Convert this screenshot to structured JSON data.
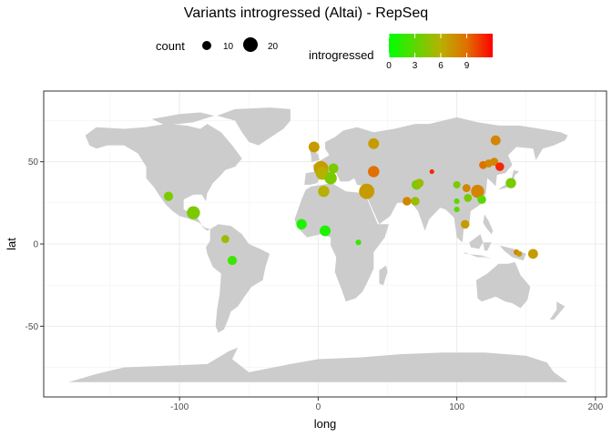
{
  "chart_data": {
    "type": "scatter",
    "title": "Variants introgressed (Altai) - RepSeq",
    "xlabel": "long",
    "ylabel": "lat",
    "xlim": [
      -198,
      208
    ],
    "ylim": [
      -93,
      93
    ],
    "x_ticks": [
      -100,
      0,
      100,
      200
    ],
    "x_tick_labels": [
      "-100",
      "0",
      "100",
      "200"
    ],
    "y_ticks": [
      -50,
      0,
      50
    ],
    "y_tick_labels": [
      "-50",
      "0",
      "50"
    ],
    "grid": true,
    "background_map": "world",
    "legend": {
      "placement": "top",
      "size": {
        "title": "count",
        "values": [
          10,
          20
        ],
        "labels": [
          "10",
          "20"
        ]
      },
      "color": {
        "title": "introgressed",
        "min": 0,
        "max": 12,
        "ticks": [
          0,
          3,
          6,
          9
        ],
        "tick_labels": [
          "0",
          "3",
          "6",
          "9"
        ],
        "low_color": "#00ff00",
        "high_color": "#ff0000"
      }
    },
    "points": [
      {
        "long": -108,
        "lat": 29,
        "count": 8,
        "introgressed": 4
      },
      {
        "long": -90,
        "lat": 19,
        "count": 16,
        "introgressed": 4
      },
      {
        "long": -67,
        "lat": 3,
        "count": 6,
        "introgressed": 5
      },
      {
        "long": -62,
        "lat": -10,
        "count": 8,
        "introgressed": 2
      },
      {
        "long": -12,
        "lat": 12,
        "count": 10,
        "introgressed": 1
      },
      {
        "long": 5,
        "lat": 8,
        "count": 11,
        "introgressed": 1
      },
      {
        "long": 29,
        "lat": 1,
        "count": 3,
        "introgressed": 2
      },
      {
        "long": -3,
        "lat": 59,
        "count": 11,
        "introgressed": 7
      },
      {
        "long": 2,
        "lat": 46,
        "count": 20,
        "introgressed": 7
      },
      {
        "long": 3,
        "lat": 43,
        "count": 16,
        "introgressed": 6
      },
      {
        "long": 11,
        "lat": 46,
        "count": 9,
        "introgressed": 4
      },
      {
        "long": 9,
        "lat": 40,
        "count": 14,
        "introgressed": 4
      },
      {
        "long": 4,
        "lat": 32,
        "count": 12,
        "introgressed": 6
      },
      {
        "long": 35,
        "lat": 32,
        "count": 22,
        "introgressed": 7
      },
      {
        "long": 40,
        "lat": 61,
        "count": 11,
        "introgressed": 7
      },
      {
        "long": 40,
        "lat": 44,
        "count": 12,
        "introgressed": 9
      },
      {
        "long": 64,
        "lat": 26,
        "count": 7,
        "introgressed": 8
      },
      {
        "long": 70,
        "lat": 26,
        "count": 7,
        "introgressed": 5
      },
      {
        "long": 71,
        "lat": 36,
        "count": 9,
        "introgressed": 4
      },
      {
        "long": 73,
        "lat": 37,
        "count": 7,
        "introgressed": 5
      },
      {
        "long": 82,
        "lat": 44,
        "count": 2,
        "introgressed": 11
      },
      {
        "long": 100,
        "lat": 36,
        "count": 5,
        "introgressed": 4
      },
      {
        "long": 100,
        "lat": 26,
        "count": 3,
        "introgressed": 3
      },
      {
        "long": 100,
        "lat": 21,
        "count": 3,
        "introgressed": 3
      },
      {
        "long": 107,
        "lat": 34,
        "count": 6,
        "introgressed": 8
      },
      {
        "long": 106,
        "lat": 12,
        "count": 7,
        "introgressed": 7
      },
      {
        "long": 108,
        "lat": 28,
        "count": 6,
        "introgressed": 4
      },
      {
        "long": 115,
        "lat": 32,
        "count": 16,
        "introgressed": 8
      },
      {
        "long": 118,
        "lat": 27,
        "count": 7,
        "introgressed": 3
      },
      {
        "long": 119,
        "lat": 48,
        "count": 6,
        "introgressed": 9
      },
      {
        "long": 123,
        "lat": 49,
        "count": 6,
        "introgressed": 8
      },
      {
        "long": 127,
        "lat": 50,
        "count": 6,
        "introgressed": 8
      },
      {
        "long": 131,
        "lat": 47,
        "count": 7,
        "introgressed": 11
      },
      {
        "long": 128,
        "lat": 63,
        "count": 9,
        "introgressed": 8
      },
      {
        "long": 139,
        "lat": 37,
        "count": 10,
        "introgressed": 4
      },
      {
        "long": 143,
        "lat": -5,
        "count": 3,
        "introgressed": 8
      },
      {
        "long": 145,
        "lat": -6,
        "count": 3,
        "introgressed": 7
      },
      {
        "long": 155,
        "lat": -6,
        "count": 9,
        "introgressed": 7
      }
    ]
  }
}
